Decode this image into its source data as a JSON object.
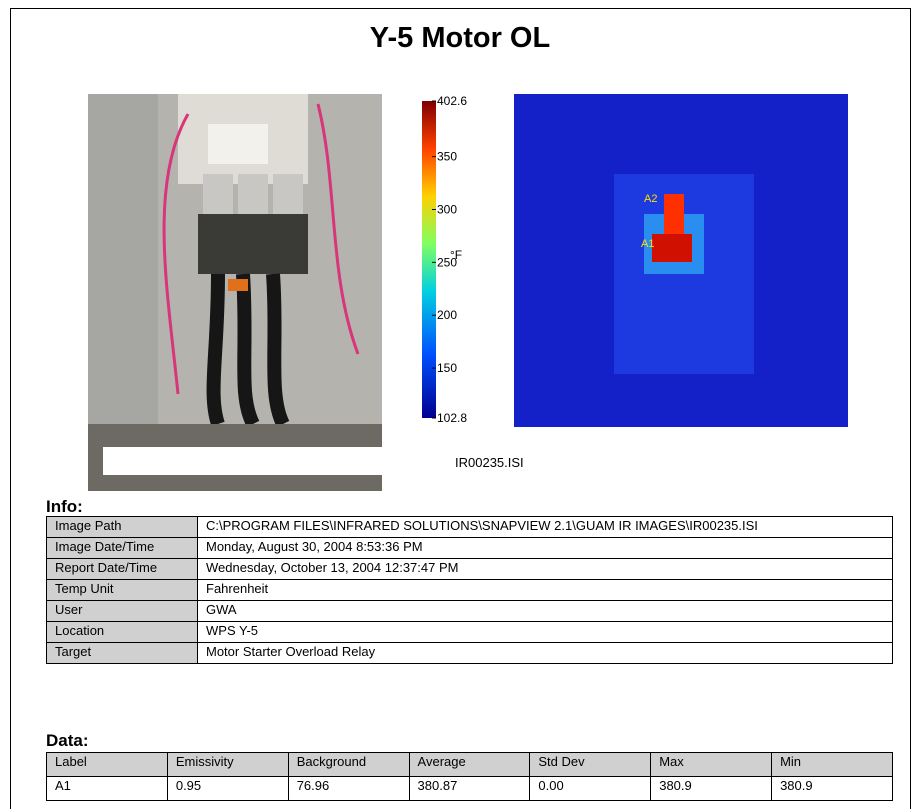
{
  "header": {
    "title": "Y-5 Motor OL"
  },
  "colorbar": {
    "unit": "°F",
    "min": 102.8,
    "max": 402.6,
    "ticks": [
      402.6,
      350,
      300,
      250,
      200,
      150,
      102.8
    ]
  },
  "ir_image": {
    "caption": "IR00235.ISI",
    "markers": [
      "A2",
      "A1"
    ]
  },
  "info": {
    "heading": "Info:",
    "rows": [
      [
        "Image Path",
        "C:\\PROGRAM FILES\\INFRARED SOLUTIONS\\SNAPVIEW 2.1\\GUAM IR IMAGES\\IR00235.ISI"
      ],
      [
        "Image Date/Time",
        "Monday, August 30, 2004  8:53:36 PM"
      ],
      [
        "Report Date/Time",
        "Wednesday, October 13, 2004  12:37:47 PM"
      ],
      [
        "Temp Unit",
        "Fahrenheit"
      ],
      [
        "User",
        "GWA"
      ],
      [
        "Location",
        "WPS Y-5"
      ],
      [
        "Target",
        "Motor Starter Overload Relay"
      ]
    ]
  },
  "data": {
    "heading": "Data:",
    "columns": [
      "Label",
      "Emissivity",
      "Background",
      "Average",
      "Std Dev",
      "Max",
      "Min"
    ],
    "rows": [
      [
        "A1",
        "0.95",
        "76.96",
        "380.87",
        "0.00",
        "380.9",
        "380.9"
      ]
    ]
  }
}
